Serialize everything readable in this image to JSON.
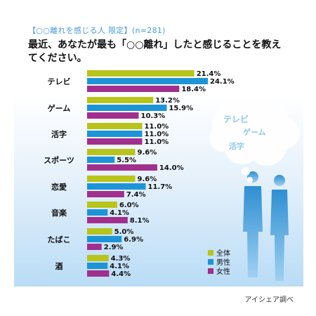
{
  "header": {
    "subtitle": "【○○離れを感じる人 限定】(n=281)",
    "title": "最近、あなたが最も「○○離れ」したと感じることを教えてください。"
  },
  "credit": "アイシェア調べ",
  "bubble": {
    "words": [
      "テレビ",
      "ゲーム",
      "活字"
    ]
  },
  "colors": {
    "all": "#b8c41a",
    "male": "#1d94d6",
    "female": "#a12f8e"
  },
  "chart_data": {
    "type": "bar",
    "orientation": "horizontal",
    "categories": [
      "テレビ",
      "ゲーム",
      "活字",
      "スポーツ",
      "恋愛",
      "音楽",
      "たばこ",
      "酒"
    ],
    "series": [
      {
        "name": "全体",
        "values": [
          21.4,
          13.2,
          11.0,
          9.6,
          9.6,
          6.0,
          5.0,
          4.3
        ]
      },
      {
        "name": "男性",
        "values": [
          24.1,
          15.9,
          11.0,
          5.5,
          11.7,
          4.1,
          6.9,
          4.1
        ]
      },
      {
        "name": "女性",
        "values": [
          18.4,
          10.3,
          11.0,
          14.0,
          7.4,
          8.1,
          2.9,
          4.4
        ]
      }
    ],
    "value_suffix": "%",
    "legend_position": "bottom-right"
  }
}
